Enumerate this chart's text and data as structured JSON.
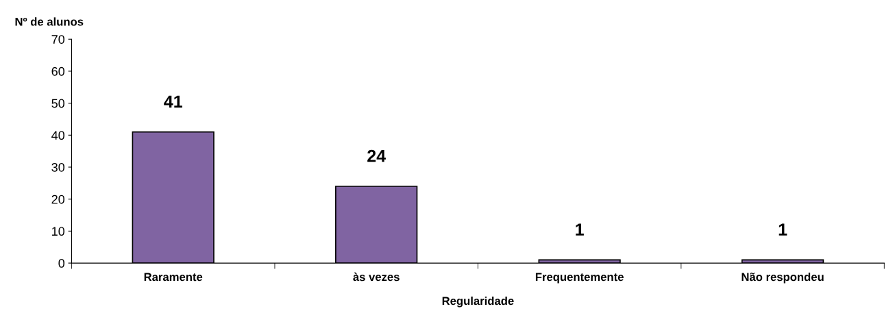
{
  "chart_data": {
    "type": "bar",
    "ylabel": "Nº de alunos",
    "xlabel": "Regularidade",
    "categories": [
      "Raramente",
      "às vezes",
      "Frequentemente",
      "Não respondeu"
    ],
    "values": [
      41,
      24,
      1,
      1
    ],
    "color": "#8064a2",
    "ylim": [
      0,
      70
    ],
    "yticks": [
      0,
      10,
      20,
      30,
      40,
      50,
      60,
      70
    ],
    "grid": false,
    "data_labels": true
  }
}
